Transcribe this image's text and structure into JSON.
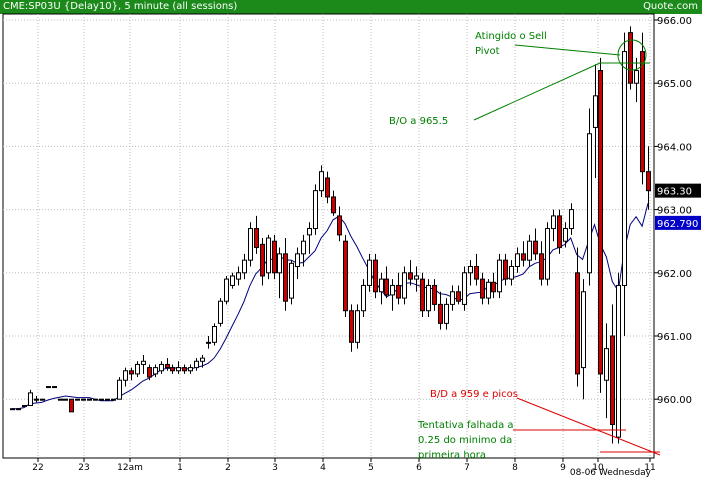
{
  "header": {
    "title": "CME:SP03U {Delay10}, 5 minute (all sessions)",
    "source": "Quote.com"
  },
  "chart_data": {
    "type": "candlestick",
    "ylim": [
      959.0,
      966.1
    ],
    "y_ticks": [
      "966.00",
      "965.00",
      "964.00",
      "963.00",
      "962.00",
      "961.00",
      "960.00"
    ],
    "x_ticks": [
      "22",
      "23",
      "12am",
      "1",
      "2",
      "3",
      "4",
      "5",
      "6",
      "7",
      "8",
      "9",
      "10",
      "11"
    ],
    "date_label": "08-06 Wednesday",
    "last_price": "963.30",
    "moving_average_label": "962.790",
    "annotations": [
      {
        "text": [
          "Atingido o Sell",
          "Pivot"
        ],
        "color": "#008000"
      },
      {
        "text": [
          "B/O a 965.5"
        ],
        "color": "#008000"
      },
      {
        "text": [
          "B/D a 959 e picos"
        ],
        "color": "#e00000"
      },
      {
        "text": [
          "Tentativa falhada a",
          "0.25 do minimo da",
          "primeira hora"
        ],
        "color": "#008000"
      }
    ],
    "colors": {
      "up": "#ffffff",
      "down": "#cc0000",
      "ma": "#000080",
      "grid": "#bdbdbd",
      "annotation_green": "#008000",
      "annotation_red": "#e00000"
    },
    "candles": [
      [
        959.85,
        959.85,
        959.85,
        959.85
      ],
      [
        959.85,
        959.85,
        959.85,
        959.85
      ],
      [
        959.9,
        959.9,
        959.9,
        959.9
      ],
      [
        959.9,
        960.15,
        959.9,
        960.1
      ],
      [
        960.0,
        960.05,
        959.95,
        960.0
      ],
      [
        960.0,
        960.0,
        960.0,
        960.0
      ],
      [
        960.2,
        960.2,
        960.2,
        960.2
      ],
      [
        960.2,
        960.2,
        960.2,
        960.2
      ],
      [
        960.0,
        960.0,
        960.0,
        960.0
      ],
      [
        960.0,
        960.0,
        960.0,
        960.0
      ],
      [
        960.0,
        960.0,
        959.8,
        959.8
      ],
      [
        960.0,
        960.0,
        960.0,
        960.0
      ],
      [
        960.0,
        960.0,
        960.0,
        960.0
      ],
      [
        960.0,
        960.0,
        960.0,
        960.0
      ],
      [
        960.0,
        960.0,
        960.0,
        960.0
      ],
      [
        960.0,
        960.0,
        960.0,
        960.0
      ],
      [
        960.0,
        960.0,
        960.0,
        960.0
      ],
      [
        960.0,
        960.0,
        960.0,
        960.0
      ],
      [
        960.0,
        960.35,
        960.0,
        960.3
      ],
      [
        960.3,
        960.5,
        960.2,
        960.45
      ],
      [
        960.45,
        960.5,
        960.3,
        960.4
      ],
      [
        960.4,
        960.6,
        960.35,
        960.55
      ],
      [
        960.55,
        960.7,
        960.4,
        960.6
      ],
      [
        960.5,
        960.55,
        960.3,
        960.35
      ],
      [
        960.4,
        960.55,
        960.35,
        960.5
      ],
      [
        960.45,
        960.6,
        960.4,
        960.55
      ],
      [
        960.55,
        960.65,
        960.45,
        960.5
      ],
      [
        960.5,
        960.55,
        960.4,
        960.45
      ],
      [
        960.45,
        960.6,
        960.4,
        960.5
      ],
      [
        960.5,
        960.55,
        960.4,
        960.45
      ],
      [
        960.45,
        960.55,
        960.4,
        960.5
      ],
      [
        960.5,
        960.65,
        960.45,
        960.6
      ],
      [
        960.6,
        960.7,
        960.5,
        960.65
      ],
      [
        960.9,
        961.0,
        960.8,
        960.9
      ],
      [
        960.9,
        961.2,
        960.85,
        961.15
      ],
      [
        961.2,
        961.6,
        961.15,
        961.55
      ],
      [
        961.55,
        961.95,
        961.5,
        961.9
      ],
      [
        961.8,
        962.0,
        961.75,
        961.95
      ],
      [
        961.9,
        962.1,
        961.8,
        962.0
      ],
      [
        962.0,
        962.3,
        961.9,
        962.2
      ],
      [
        962.2,
        962.8,
        962.1,
        962.7
      ],
      [
        962.7,
        962.9,
        962.3,
        962.4
      ],
      [
        962.45,
        962.55,
        961.8,
        961.95
      ],
      [
        962.0,
        962.6,
        961.9,
        962.55
      ],
      [
        962.5,
        962.6,
        961.9,
        962.0
      ],
      [
        962.0,
        962.4,
        961.6,
        962.3
      ],
      [
        962.3,
        962.55,
        961.4,
        961.55
      ],
      [
        961.6,
        962.2,
        961.5,
        962.15
      ],
      [
        962.1,
        962.4,
        961.9,
        962.3
      ],
      [
        962.3,
        962.6,
        962.1,
        962.5
      ],
      [
        962.6,
        962.8,
        962.3,
        962.7
      ],
      [
        962.7,
        963.4,
        962.6,
        963.3
      ],
      [
        963.3,
        963.7,
        963.2,
        963.6
      ],
      [
        963.5,
        963.6,
        963.1,
        963.2
      ],
      [
        963.2,
        963.3,
        962.9,
        962.95
      ],
      [
        962.9,
        963.05,
        962.5,
        962.6
      ],
      [
        962.5,
        962.6,
        961.3,
        961.4
      ],
      [
        961.4,
        961.5,
        960.75,
        960.9
      ],
      [
        960.9,
        961.5,
        960.8,
        961.4
      ],
      [
        961.4,
        961.9,
        961.3,
        961.8
      ],
      [
        961.8,
        962.3,
        961.7,
        962.2
      ],
      [
        962.2,
        962.3,
        961.6,
        961.7
      ],
      [
        961.7,
        962.0,
        961.5,
        961.9
      ],
      [
        961.9,
        962.1,
        961.6,
        961.65
      ],
      [
        961.65,
        961.9,
        961.4,
        961.8
      ],
      [
        961.8,
        962.0,
        961.5,
        961.6
      ],
      [
        961.6,
        962.1,
        961.5,
        962.0
      ],
      [
        962.0,
        962.2,
        961.8,
        961.9
      ],
      [
        961.9,
        962.1,
        961.7,
        961.95
      ],
      [
        961.9,
        962.0,
        961.3,
        961.4
      ],
      [
        961.4,
        961.9,
        961.3,
        961.8
      ],
      [
        961.8,
        961.9,
        961.4,
        961.5
      ],
      [
        961.5,
        961.7,
        961.1,
        961.2
      ],
      [
        961.2,
        961.6,
        961.1,
        961.5
      ],
      [
        961.5,
        961.8,
        961.4,
        961.7
      ],
      [
        961.7,
        961.8,
        961.5,
        961.55
      ],
      [
        961.5,
        962.1,
        961.4,
        962.0
      ],
      [
        962.0,
        962.2,
        961.8,
        962.1
      ],
      [
        962.1,
        962.3,
        961.8,
        961.9
      ],
      [
        961.9,
        962.0,
        961.5,
        961.6
      ],
      [
        961.6,
        961.9,
        961.5,
        961.85
      ],
      [
        961.85,
        962.0,
        961.6,
        961.7
      ],
      [
        961.7,
        962.3,
        961.6,
        962.2
      ],
      [
        962.2,
        962.3,
        961.8,
        961.9
      ],
      [
        961.9,
        962.2,
        961.8,
        962.1
      ],
      [
        962.1,
        962.4,
        962.0,
        962.3
      ],
      [
        962.3,
        962.5,
        962.1,
        962.2
      ],
      [
        962.2,
        962.6,
        962.1,
        962.5
      ],
      [
        962.5,
        962.7,
        962.2,
        962.3
      ],
      [
        962.3,
        962.5,
        961.8,
        961.9
      ],
      [
        961.9,
        962.8,
        961.8,
        962.7
      ],
      [
        962.7,
        963.0,
        962.5,
        962.9
      ],
      [
        962.9,
        963.0,
        962.3,
        962.4
      ],
      [
        962.5,
        962.8,
        962.4,
        962.7
      ],
      [
        962.7,
        963.1,
        962.6,
        963.0
      ],
      [
        962.0,
        962.4,
        960.2,
        960.4
      ],
      [
        960.5,
        961.9,
        960.0,
        961.7
      ],
      [
        962.0,
        964.6,
        961.8,
        964.2
      ],
      [
        964.3,
        965.3,
        963.5,
        964.8
      ],
      [
        965.2,
        965.4,
        960.1,
        960.4
      ],
      [
        960.3,
        961.2,
        959.7,
        960.8
      ],
      [
        961.0,
        961.5,
        959.3,
        959.6
      ],
      [
        959.4,
        962.0,
        959.3,
        961.8
      ],
      [
        961.8,
        965.8,
        961.0,
        965.5
      ],
      [
        965.8,
        965.9,
        964.9,
        965.0
      ],
      [
        965.0,
        965.4,
        964.7,
        965.2
      ],
      [
        965.5,
        965.8,
        963.4,
        963.6
      ],
      [
        963.6,
        964.0,
        963.0,
        963.3
      ]
    ]
  }
}
